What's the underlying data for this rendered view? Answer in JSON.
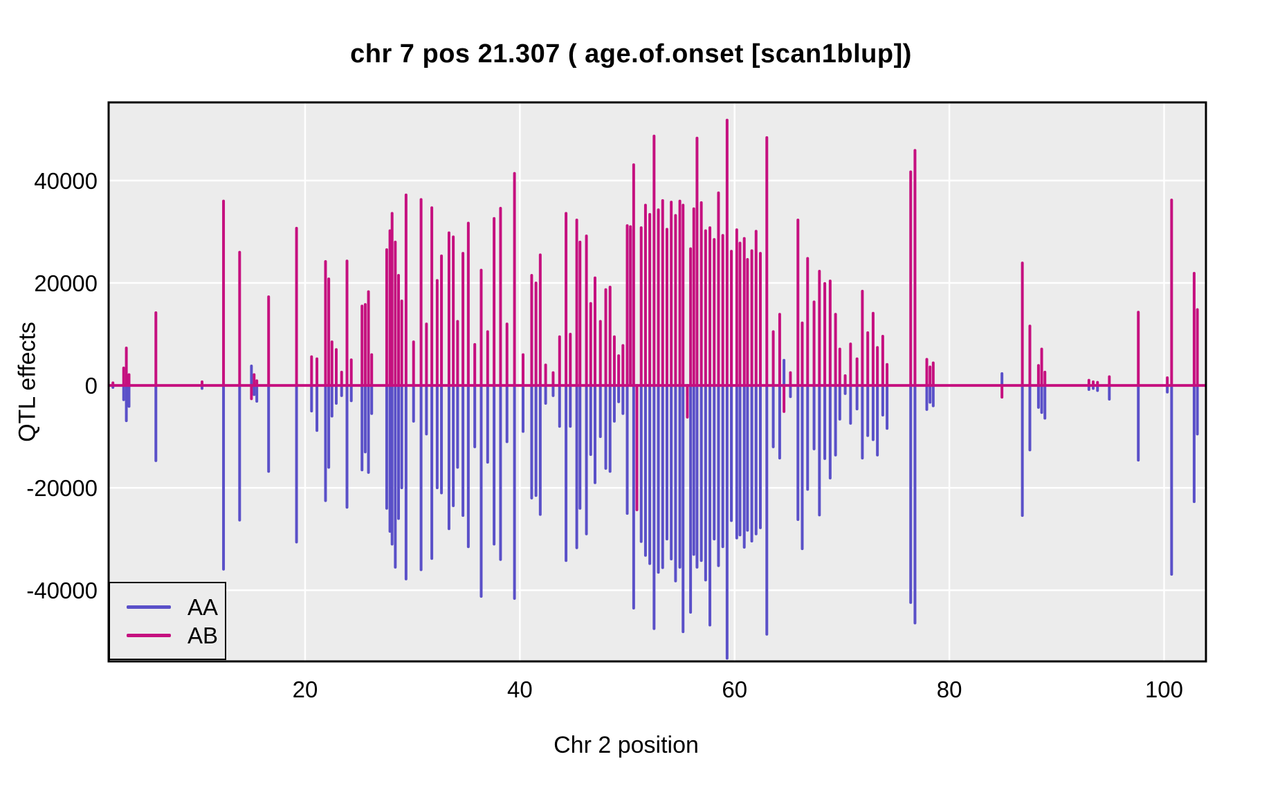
{
  "title": "chr 7 pos 21.307 ( age.of.onset  [scan1blup])",
  "legend": {
    "items": [
      {
        "label": "AA",
        "color": "#5A50C8"
      },
      {
        "label": "AB",
        "color": "#C5107F"
      }
    ]
  },
  "colors": {
    "panel_background": "#ECECEC",
    "grid": "#FFFFFF",
    "border": "#000000",
    "aa_line": "#5A50C8",
    "ab_line": "#C5107F",
    "text": "#000000"
  },
  "chart_data": {
    "type": "line",
    "subtype": "qtl-effect-spikes",
    "title": "chr 7 pos 21.307 ( age.of.onset  [scan1blup])",
    "xlabel": "Chr 2 position",
    "ylabel": "QTL effects",
    "x_ticks": [
      20,
      40,
      60,
      80,
      100
    ],
    "y_ticks": [
      -40000,
      -20000,
      0,
      20000,
      40000
    ],
    "xlim": [
      1.7,
      103.9
    ],
    "ylim": [
      -53900,
      55270
    ],
    "grid": true,
    "legend_position": "bottom-left",
    "series": [
      {
        "name": "AA",
        "color": "#5A50C8"
      },
      {
        "name": "AB",
        "color": "#C5107F"
      }
    ],
    "zero_line_color": "#C5107F",
    "spikes_format": [
      "x",
      "AA",
      "AB"
    ],
    "spikes": [
      [
        2.1,
        -400,
        500
      ],
      [
        3.1,
        -2800,
        3400
      ],
      [
        3.35,
        -6900,
        7300
      ],
      [
        3.6,
        -4100,
        2100
      ],
      [
        6.1,
        -14700,
        14200
      ],
      [
        10.4,
        -600,
        700
      ],
      [
        12.4,
        -35900,
        36000
      ],
      [
        13.9,
        -26300,
        26000
      ],
      [
        15.0,
        3800,
        -2600
      ],
      [
        15.25,
        -1800,
        2100
      ],
      [
        15.5,
        -3100,
        900
      ],
      [
        16.6,
        -16800,
        17300
      ],
      [
        19.2,
        -30600,
        30700
      ],
      [
        20.6,
        -5000,
        5600
      ],
      [
        21.1,
        -8800,
        5200
      ],
      [
        21.9,
        -22500,
        24200
      ],
      [
        22.2,
        -16000,
        20800
      ],
      [
        22.5,
        -6000,
        8500
      ],
      [
        22.9,
        -3500,
        7000
      ],
      [
        23.4,
        -2000,
        2600
      ],
      [
        23.9,
        -23800,
        24300
      ],
      [
        24.3,
        -3000,
        5000
      ],
      [
        25.3,
        -16500,
        15500
      ],
      [
        25.6,
        -13000,
        15800
      ],
      [
        25.9,
        -17000,
        18300
      ],
      [
        26.2,
        -5500,
        6000
      ],
      [
        27.6,
        -24000,
        26500
      ],
      [
        27.9,
        -28500,
        30200
      ],
      [
        28.1,
        -31000,
        33600
      ],
      [
        28.4,
        -35500,
        28000
      ],
      [
        28.7,
        -26000,
        21500
      ],
      [
        29.0,
        -20000,
        16500
      ],
      [
        29.4,
        -37800,
        37200
      ],
      [
        30.1,
        -7000,
        8500
      ],
      [
        30.8,
        -36000,
        36300
      ],
      [
        31.3,
        -9500,
        12000
      ],
      [
        31.8,
        -33800,
        34700
      ],
      [
        32.3,
        -20000,
        20500
      ],
      [
        32.7,
        -21000,
        25300
      ],
      [
        33.4,
        -28000,
        29800
      ],
      [
        33.8,
        -23500,
        29000
      ],
      [
        34.2,
        -16000,
        12500
      ],
      [
        34.7,
        -25400,
        25800
      ],
      [
        35.2,
        -31500,
        31700
      ],
      [
        35.8,
        -12000,
        8000
      ],
      [
        36.4,
        -41200,
        22500
      ],
      [
        37.0,
        -15000,
        10500
      ],
      [
        37.6,
        -31000,
        32600
      ],
      [
        38.2,
        -34000,
        34600
      ],
      [
        38.8,
        -11000,
        12000
      ],
      [
        39.5,
        -41600,
        41400
      ],
      [
        40.3,
        -9000,
        6000
      ],
      [
        41.1,
        -22000,
        21500
      ],
      [
        41.5,
        -21500,
        20000
      ],
      [
        41.9,
        -25200,
        25500
      ],
      [
        42.4,
        -3500,
        4000
      ],
      [
        43.1,
        -2000,
        2500
      ],
      [
        43.7,
        -8000,
        9500
      ],
      [
        44.3,
        -34200,
        33600
      ],
      [
        44.7,
        -8000,
        10000
      ],
      [
        45.3,
        -31700,
        32300
      ],
      [
        45.6,
        -24000,
        28000
      ],
      [
        46.2,
        -29000,
        29200
      ],
      [
        46.6,
        -13500,
        16000
      ],
      [
        47.0,
        -19000,
        21000
      ],
      [
        47.5,
        -10000,
        12500
      ],
      [
        48.0,
        -16200,
        18700
      ],
      [
        48.4,
        -16800,
        19200
      ],
      [
        48.8,
        -7000,
        9500
      ],
      [
        49.2,
        -3200,
        5800
      ],
      [
        49.6,
        -5500,
        7800
      ],
      [
        50.0,
        -25000,
        31200
      ],
      [
        50.3,
        30500,
        31000
      ],
      [
        50.6,
        -43500,
        43100
      ],
      [
        50.9,
        -1000,
        -24300
      ],
      [
        51.3,
        -30500,
        30800
      ],
      [
        51.7,
        -33200,
        35200
      ],
      [
        52.1,
        -34800,
        33400
      ],
      [
        52.5,
        -47500,
        48700
      ],
      [
        52.9,
        -36500,
        34300
      ],
      [
        53.3,
        -35600,
        36100
      ],
      [
        53.7,
        -30000,
        30500
      ],
      [
        54.1,
        -33900,
        35800
      ],
      [
        54.5,
        -38200,
        33200
      ],
      [
        54.9,
        -35500,
        36000
      ],
      [
        55.2,
        -48100,
        35200
      ],
      [
        55.6,
        -2000,
        -6200
      ],
      [
        55.9,
        -44300,
        26700
      ],
      [
        56.2,
        -33000,
        34500
      ],
      [
        56.5,
        -35500,
        48300
      ],
      [
        56.9,
        -34200,
        35700
      ],
      [
        57.3,
        -38000,
        30200
      ],
      [
        57.7,
        -46800,
        30800
      ],
      [
        58.1,
        -30000,
        28500
      ],
      [
        58.5,
        -35200,
        37600
      ],
      [
        58.9,
        -31500,
        29300
      ],
      [
        59.3,
        -53300,
        51800
      ],
      [
        59.7,
        -26400,
        26200
      ],
      [
        60.2,
        -29800,
        30400
      ],
      [
        60.5,
        -29200,
        27800
      ],
      [
        60.9,
        -31600,
        28700
      ],
      [
        61.2,
        -28300,
        24600
      ],
      [
        61.6,
        -30400,
        26300
      ],
      [
        62.0,
        -29000,
        30100
      ],
      [
        62.4,
        -27800,
        25800
      ],
      [
        63.0,
        -48600,
        48400
      ],
      [
        63.6,
        -12000,
        10500
      ],
      [
        64.2,
        -14200,
        13900
      ],
      [
        64.6,
        4900,
        -5100
      ],
      [
        65.2,
        -2200,
        2500
      ],
      [
        65.9,
        -26200,
        32300
      ],
      [
        66.3,
        -31900,
        12200
      ],
      [
        66.8,
        -20300,
        24800
      ],
      [
        67.4,
        -12400,
        16300
      ],
      [
        67.9,
        -25300,
        22300
      ],
      [
        68.4,
        -14300,
        19900
      ],
      [
        68.9,
        -18100,
        20400
      ],
      [
        69.4,
        -13600,
        13900
      ],
      [
        69.8,
        -6600,
        7100
      ],
      [
        70.3,
        -1600,
        1900
      ],
      [
        70.8,
        -7400,
        8100
      ],
      [
        71.4,
        -4600,
        5200
      ],
      [
        71.9,
        -14200,
        18400
      ],
      [
        72.4,
        -9800,
        10300
      ],
      [
        72.9,
        -10600,
        14100
      ],
      [
        73.3,
        -13600,
        7400
      ],
      [
        73.8,
        -5800,
        9600
      ],
      [
        74.2,
        -8400,
        4100
      ],
      [
        76.4,
        -42400,
        41700
      ],
      [
        76.8,
        -46400,
        45900
      ],
      [
        77.9,
        -4700,
        5100
      ],
      [
        78.2,
        -3300,
        3600
      ],
      [
        78.5,
        -4000,
        4400
      ],
      [
        84.9,
        2300,
        -2300
      ],
      [
        86.8,
        -25400,
        23900
      ],
      [
        87.5,
        -12600,
        11600
      ],
      [
        88.3,
        -4300,
        3900
      ],
      [
        88.6,
        -5300,
        7100
      ],
      [
        88.9,
        -6400,
        2600
      ],
      [
        93.0,
        -800,
        1000
      ],
      [
        93.4,
        -600,
        700
      ],
      [
        93.8,
        -1000,
        600
      ],
      [
        94.9,
        -2700,
        1700
      ],
      [
        97.6,
        -14600,
        14300
      ],
      [
        100.3,
        -1300,
        1500
      ],
      [
        100.7,
        -36900,
        36200
      ],
      [
        102.8,
        -22700,
        21900
      ],
      [
        103.1,
        -9500,
        14800
      ]
    ]
  }
}
